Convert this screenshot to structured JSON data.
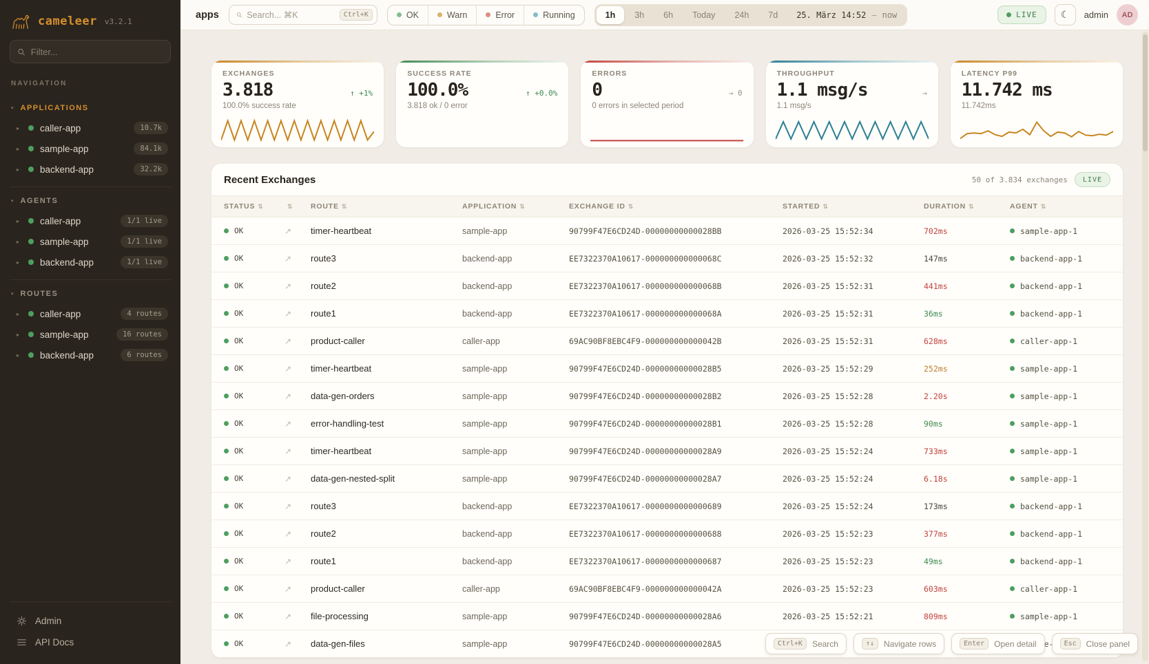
{
  "icons": {
    "sort": "⇅",
    "link": "↗",
    "moon": "☾",
    "item_caret": "▸",
    "section_caret": "▾"
  },
  "sidebar": {
    "brand": {
      "name": "cameleer",
      "version": "v3.2.1"
    },
    "filter": {
      "placeholder": "Filter..."
    },
    "nav_label": "NAVIGATION",
    "sections": [
      {
        "label": "APPLICATIONS",
        "accent": true,
        "items": [
          {
            "name": "caller-app",
            "badge": "10.7k"
          },
          {
            "name": "sample-app",
            "badge": "84.1k"
          },
          {
            "name": "backend-app",
            "badge": "32.2k"
          }
        ]
      },
      {
        "label": "AGENTS",
        "accent": false,
        "items": [
          {
            "name": "caller-app",
            "badge": "1/1 live"
          },
          {
            "name": "sample-app",
            "badge": "1/1 live"
          },
          {
            "name": "backend-app",
            "badge": "1/1 live"
          }
        ]
      },
      {
        "label": "ROUTES",
        "accent": false,
        "items": [
          {
            "name": "caller-app",
            "badge": "4 routes"
          },
          {
            "name": "sample-app",
            "badge": "16 routes"
          },
          {
            "name": "backend-app",
            "badge": "6 routes"
          }
        ]
      }
    ],
    "footer": [
      {
        "icon": "gear",
        "label": "Admin"
      },
      {
        "icon": "list",
        "label": "API Docs"
      }
    ]
  },
  "topbar": {
    "context_label": "apps",
    "search": {
      "placeholder": "Search... ⌘K",
      "kbd": "Ctrl+K"
    },
    "status_filters": [
      {
        "label": "OK",
        "color": "#84bd8f"
      },
      {
        "label": "Warn",
        "color": "#dab36a"
      },
      {
        "label": "Error",
        "color": "#dd8d84"
      },
      {
        "label": "Running",
        "color": "#84bcc9"
      }
    ],
    "time_ranges": [
      {
        "label": "1h",
        "active": true
      },
      {
        "label": "3h",
        "active": false
      },
      {
        "label": "6h",
        "active": false
      },
      {
        "label": "Today",
        "active": false
      },
      {
        "label": "24h",
        "active": false
      },
      {
        "label": "7d",
        "active": false
      }
    ],
    "date_display": {
      "date": "25. März 14:52",
      "separator": "—",
      "now": "now"
    },
    "live_badge": "LIVE",
    "user": {
      "name": "admin",
      "initials": "AD"
    }
  },
  "stat_cards": [
    {
      "label": "EXCHANGES",
      "value": "3.818",
      "delta_arrow": "↑",
      "delta": "+1%",
      "delta_class": "up",
      "sub": "100.0% success rate",
      "color": "#c8851f",
      "sparkline": [
        5,
        95,
        5,
        95,
        5,
        95,
        5,
        95,
        5,
        95,
        5,
        95,
        5,
        95,
        5,
        95,
        5,
        95,
        5,
        95,
        5,
        95,
        5,
        45
      ]
    },
    {
      "label": "SUCCESS RATE",
      "value": "100.0%",
      "delta_arrow": "↑",
      "delta": "+0.0%",
      "delta_class": "up",
      "sub": "3.818 ok / 0 error",
      "color": "#3f8b4f",
      "sparkline": null
    },
    {
      "label": "ERRORS",
      "value": "0",
      "delta_arrow": "→",
      "delta": "0",
      "delta_class": "flat",
      "sub": "0 errors in selected period",
      "color": "#c4433c",
      "sparkline": [
        2,
        2
      ]
    },
    {
      "label": "THROUGHPUT",
      "value": "1.1 msg/s",
      "delta_arrow": "→",
      "delta": "",
      "delta_class": "flat",
      "sub": "1.1 msg/s",
      "color": "#2a7f93",
      "sparkline": [
        10,
        90,
        10,
        90,
        10,
        90,
        10,
        90,
        10,
        90,
        10,
        90,
        10,
        90,
        10,
        90,
        10,
        90,
        10,
        90,
        10
      ]
    },
    {
      "label": "LATENCY P99",
      "value": "11.742 ms",
      "delta_arrow": "",
      "delta": "",
      "delta_class": "flat",
      "sub": "11.742ms",
      "color": "#c8851f",
      "sparkline": [
        12,
        35,
        38,
        35,
        48,
        30,
        22,
        42,
        38,
        55,
        30,
        88,
        48,
        22,
        42,
        38,
        20,
        45,
        28,
        25,
        32,
        28,
        45
      ]
    }
  ],
  "table": {
    "title": "Recent Exchanges",
    "count_text": "50 of 3.834 exchanges",
    "live_label": "LIVE",
    "columns": [
      {
        "label": "STATUS"
      },
      {
        "label": ""
      },
      {
        "label": "ROUTE"
      },
      {
        "label": "APPLICATION"
      },
      {
        "label": "EXCHANGE ID"
      },
      {
        "label": "STARTED"
      },
      {
        "label": "DURATION"
      },
      {
        "label": "AGENT"
      }
    ],
    "rows": [
      {
        "status": "OK",
        "route": "timer-heartbeat",
        "app": "sample-app",
        "exchange_id": "90799F47E6CD24D-00000000000028BB",
        "started": "2026-03-25 15:52:34",
        "duration": "702ms",
        "duration_class": "slow",
        "agent": "sample-app-1"
      },
      {
        "status": "OK",
        "route": "route3",
        "app": "backend-app",
        "exchange_id": "EE7322370A10617-000000000000068C",
        "started": "2026-03-25 15:52:32",
        "duration": "147ms",
        "duration_class": "normal",
        "agent": "backend-app-1"
      },
      {
        "status": "OK",
        "route": "route2",
        "app": "backend-app",
        "exchange_id": "EE7322370A10617-000000000000068B",
        "started": "2026-03-25 15:52:31",
        "duration": "441ms",
        "duration_class": "slow",
        "agent": "backend-app-1"
      },
      {
        "status": "OK",
        "route": "route1",
        "app": "backend-app",
        "exchange_id": "EE7322370A10617-000000000000068A",
        "started": "2026-03-25 15:52:31",
        "duration": "36ms",
        "duration_class": "fast",
        "agent": "backend-app-1"
      },
      {
        "status": "OK",
        "route": "product-caller",
        "app": "caller-app",
        "exchange_id": "69AC90BF8EBC4F9-000000000000042B",
        "started": "2026-03-25 15:52:31",
        "duration": "628ms",
        "duration_class": "slow",
        "agent": "caller-app-1"
      },
      {
        "status": "OK",
        "route": "timer-heartbeat",
        "app": "sample-app",
        "exchange_id": "90799F47E6CD24D-00000000000028B5",
        "started": "2026-03-25 15:52:29",
        "duration": "252ms",
        "duration_class": "warn",
        "agent": "sample-app-1"
      },
      {
        "status": "OK",
        "route": "data-gen-orders",
        "app": "sample-app",
        "exchange_id": "90799F47E6CD24D-00000000000028B2",
        "started": "2026-03-25 15:52:28",
        "duration": "2.20s",
        "duration_class": "slow",
        "agent": "sample-app-1"
      },
      {
        "status": "OK",
        "route": "error-handling-test",
        "app": "sample-app",
        "exchange_id": "90799F47E6CD24D-00000000000028B1",
        "started": "2026-03-25 15:52:28",
        "duration": "90ms",
        "duration_class": "fast",
        "agent": "sample-app-1"
      },
      {
        "status": "OK",
        "route": "timer-heartbeat",
        "app": "sample-app",
        "exchange_id": "90799F47E6CD24D-00000000000028A9",
        "started": "2026-03-25 15:52:24",
        "duration": "733ms",
        "duration_class": "slow",
        "agent": "sample-app-1"
      },
      {
        "status": "OK",
        "route": "data-gen-nested-split",
        "app": "sample-app",
        "exchange_id": "90799F47E6CD24D-00000000000028A7",
        "started": "2026-03-25 15:52:24",
        "duration": "6.18s",
        "duration_class": "slow",
        "agent": "sample-app-1"
      },
      {
        "status": "OK",
        "route": "route3",
        "app": "backend-app",
        "exchange_id": "EE7322370A10617-0000000000000689",
        "started": "2026-03-25 15:52:24",
        "duration": "173ms",
        "duration_class": "normal",
        "agent": "backend-app-1"
      },
      {
        "status": "OK",
        "route": "route2",
        "app": "backend-app",
        "exchange_id": "EE7322370A10617-0000000000000688",
        "started": "2026-03-25 15:52:23",
        "duration": "377ms",
        "duration_class": "slow",
        "agent": "backend-app-1"
      },
      {
        "status": "OK",
        "route": "route1",
        "app": "backend-app",
        "exchange_id": "EE7322370A10617-0000000000000687",
        "started": "2026-03-25 15:52:23",
        "duration": "49ms",
        "duration_class": "fast",
        "agent": "backend-app-1"
      },
      {
        "status": "OK",
        "route": "product-caller",
        "app": "caller-app",
        "exchange_id": "69AC90BF8EBC4F9-000000000000042A",
        "started": "2026-03-25 15:52:23",
        "duration": "603ms",
        "duration_class": "slow",
        "agent": "caller-app-1"
      },
      {
        "status": "OK",
        "route": "file-processing",
        "app": "sample-app",
        "exchange_id": "90799F47E6CD24D-00000000000028A6",
        "started": "2026-03-25 15:52:21",
        "duration": "809ms",
        "duration_class": "slow",
        "agent": "sample-app-1"
      },
      {
        "status": "OK",
        "route": "data-gen-files",
        "app": "sample-app",
        "exchange_id": "90799F47E6CD24D-00000000000028A5",
        "started": "2026-03-25 1",
        "duration": "",
        "duration_class": "normal",
        "agent": "sample-app-1"
      }
    ]
  },
  "shortcuts": [
    {
      "kbd": "Ctrl+K",
      "label": "Search"
    },
    {
      "kbd": "↑↓",
      "label": "Navigate rows"
    },
    {
      "kbd": "Enter",
      "label": "Open detail"
    },
    {
      "kbd": "Esc",
      "label": "Close panel"
    }
  ]
}
